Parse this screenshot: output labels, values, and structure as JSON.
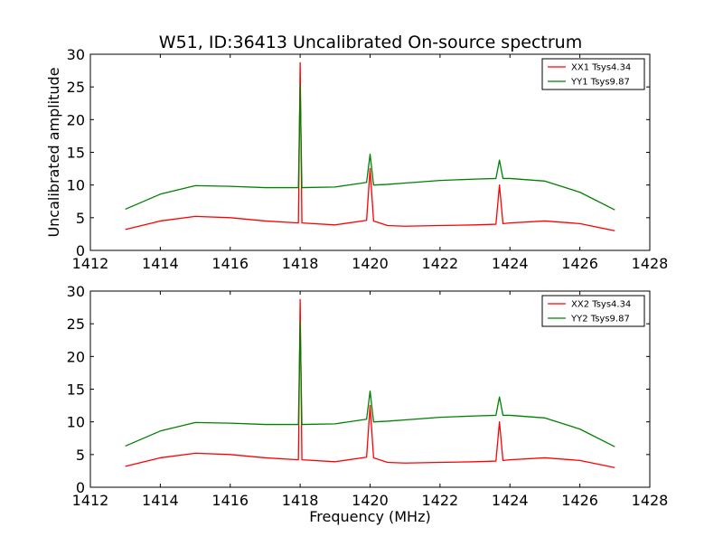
{
  "figure_title": "W51, ID:36413 Uncalibrated On-source spectrum",
  "colors": {
    "XX": "#ff0000",
    "YY": "#008000",
    "axes": "#000000",
    "background": "#ffffff"
  },
  "chart_data": [
    {
      "type": "line",
      "title": "W51, ID:36413 Uncalibrated On-source spectrum",
      "xlabel": "",
      "ylabel": "Uncalibrated amplitude",
      "xlim": [
        1412,
        1428
      ],
      "ylim": [
        0,
        30
      ],
      "xticks": [
        "1412",
        "1414",
        "1416",
        "1418",
        "1420",
        "1422",
        "1424",
        "1426",
        "1428"
      ],
      "yticks": [
        "0",
        "5",
        "10",
        "15",
        "20",
        "25",
        "30"
      ],
      "grid": false,
      "legend_position": "top-right",
      "series": [
        {
          "name": "XX1 Tsys4.34",
          "color": "#ff0000",
          "x": [
            1413.0,
            1414.0,
            1415.0,
            1416.0,
            1417.0,
            1417.95,
            1418.0,
            1418.05,
            1419.0,
            1419.9,
            1420.0,
            1420.1,
            1420.5,
            1421.0,
            1422.0,
            1423.0,
            1423.6,
            1423.7,
            1423.8,
            1424.0,
            1425.0,
            1426.0,
            1427.0
          ],
          "y": [
            3.2,
            4.5,
            5.2,
            5.0,
            4.5,
            4.2,
            28.7,
            4.2,
            3.9,
            4.6,
            12.5,
            4.5,
            3.8,
            3.7,
            3.8,
            3.9,
            4.0,
            10.0,
            4.1,
            4.2,
            4.5,
            4.1,
            3.0
          ]
        },
        {
          "name": "YY1 Tsys9.87",
          "color": "#008000",
          "x": [
            1413.0,
            1414.0,
            1415.0,
            1416.0,
            1417.0,
            1417.95,
            1418.0,
            1418.05,
            1419.0,
            1419.9,
            1420.0,
            1420.1,
            1420.5,
            1421.0,
            1422.0,
            1423.0,
            1423.6,
            1423.7,
            1423.8,
            1424.0,
            1425.0,
            1426.0,
            1427.0
          ],
          "y": [
            6.3,
            8.6,
            9.9,
            9.8,
            9.6,
            9.6,
            25.3,
            9.6,
            9.7,
            10.4,
            14.7,
            10.0,
            10.1,
            10.3,
            10.7,
            10.9,
            11.0,
            13.8,
            11.0,
            11.0,
            10.6,
            8.9,
            6.2
          ]
        }
      ]
    },
    {
      "type": "line",
      "title": "",
      "xlabel": "Frequency (MHz)",
      "ylabel": "",
      "xlim": [
        1412,
        1428
      ],
      "ylim": [
        0,
        30
      ],
      "xticks": [
        "1412",
        "1414",
        "1416",
        "1418",
        "1420",
        "1422",
        "1424",
        "1426",
        "1428"
      ],
      "yticks": [
        "0",
        "5",
        "10",
        "15",
        "20",
        "25",
        "30"
      ],
      "grid": false,
      "legend_position": "top-right",
      "series": [
        {
          "name": "XX2 Tsys4.34",
          "color": "#ff0000",
          "x": [
            1413.0,
            1414.0,
            1415.0,
            1416.0,
            1417.0,
            1417.95,
            1418.0,
            1418.05,
            1419.0,
            1419.9,
            1420.0,
            1420.1,
            1420.5,
            1421.0,
            1422.0,
            1423.0,
            1423.6,
            1423.7,
            1423.8,
            1424.0,
            1425.0,
            1426.0,
            1427.0
          ],
          "y": [
            3.2,
            4.5,
            5.2,
            5.0,
            4.5,
            4.2,
            28.7,
            4.2,
            3.9,
            4.6,
            12.5,
            4.5,
            3.8,
            3.7,
            3.8,
            3.9,
            4.0,
            10.0,
            4.1,
            4.2,
            4.5,
            4.1,
            3.0
          ]
        },
        {
          "name": "YY2 Tsys9.87",
          "color": "#008000",
          "x": [
            1413.0,
            1414.0,
            1415.0,
            1416.0,
            1417.0,
            1417.95,
            1418.0,
            1418.05,
            1419.0,
            1419.9,
            1420.0,
            1420.1,
            1420.5,
            1421.0,
            1422.0,
            1423.0,
            1423.6,
            1423.7,
            1423.8,
            1424.0,
            1425.0,
            1426.0,
            1427.0
          ],
          "y": [
            6.3,
            8.6,
            9.9,
            9.8,
            9.6,
            9.6,
            25.3,
            9.6,
            9.7,
            10.4,
            14.7,
            10.0,
            10.1,
            10.3,
            10.7,
            10.9,
            11.0,
            13.8,
            11.0,
            11.0,
            10.6,
            8.9,
            6.2
          ]
        }
      ]
    }
  ]
}
